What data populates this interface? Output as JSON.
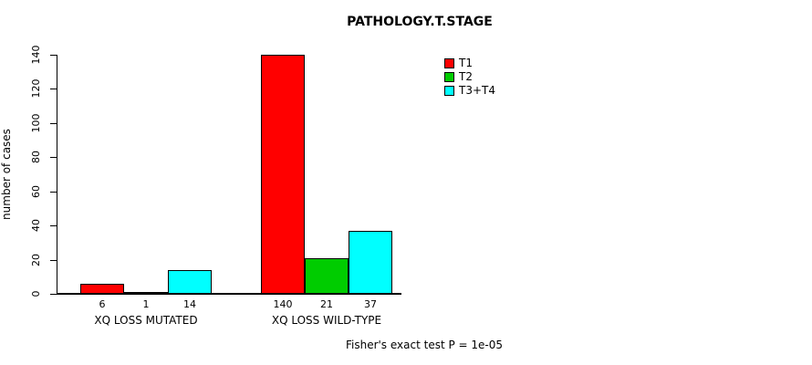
{
  "title": "PATHOLOGY.T.STAGE",
  "footer": "Fisher's exact test P = 1e-05",
  "chart_data": {
    "type": "bar",
    "title": "PATHOLOGY.T.STAGE",
    "xlabel": "",
    "ylabel": "number of cases",
    "ylim": [
      0,
      140
    ],
    "yticks": [
      0,
      20,
      40,
      60,
      80,
      100,
      120,
      140
    ],
    "grid": false,
    "legend_position": "top-right",
    "categories": [
      "XQ LOSS MUTATED",
      "XQ LOSS WILD-TYPE"
    ],
    "series": [
      {
        "name": "T1",
        "color": "#ff0000",
        "values": [
          6,
          140
        ]
      },
      {
        "name": "T2",
        "color": "#00cc00",
        "values": [
          1,
          21
        ]
      },
      {
        "name": "T3+T4",
        "color": "#00ffff",
        "values": [
          14,
          37
        ]
      }
    ],
    "bar_value_labels": [
      [
        "6",
        "1",
        "14"
      ],
      [
        "140",
        "21",
        "37"
      ]
    ],
    "annotation": "Fisher's exact test P = 1e-05"
  }
}
